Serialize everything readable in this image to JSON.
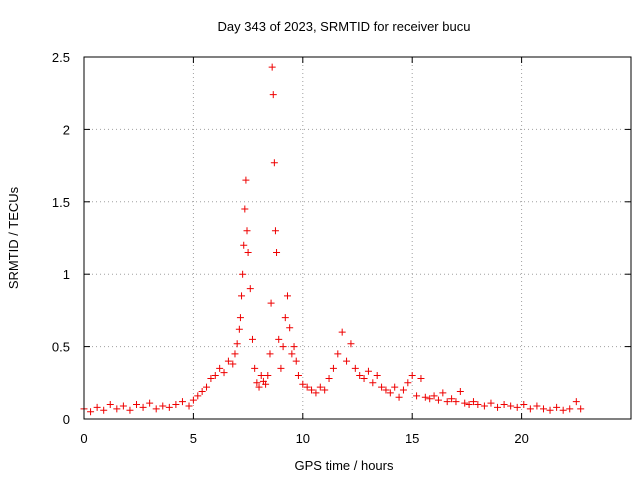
{
  "chart_data": {
    "type": "scatter",
    "title": "Day 343 of 2023, SRMTID for receiver bucu",
    "xlabel": "GPS time / hours",
    "ylabel": "SRMTID / TECUs",
    "xlim": [
      0,
      25
    ],
    "ylim": [
      0,
      2.5
    ],
    "xticks": [
      0,
      5,
      10,
      15,
      20
    ],
    "xtick_labels": [
      "0",
      "5",
      "10",
      "15",
      "20"
    ],
    "yticks": [
      0,
      0.5,
      1,
      1.5,
      2,
      2.5
    ],
    "ytick_labels": [
      "0",
      "0.5",
      "1",
      "1.5",
      "2",
      "2.5"
    ],
    "grid": true,
    "marker": "+",
    "color": "#ee0000",
    "series": [
      {
        "name": "bucu",
        "x": [
          0.0,
          0.3,
          0.6,
          0.9,
          1.2,
          1.5,
          1.8,
          2.1,
          2.4,
          2.7,
          3.0,
          3.3,
          3.6,
          3.9,
          4.2,
          4.5,
          4.8,
          5.0,
          5.2,
          5.4,
          5.6,
          5.8,
          6.0,
          6.2,
          6.4,
          6.6,
          6.8,
          6.9,
          7.0,
          7.1,
          7.15,
          7.2,
          7.25,
          7.3,
          7.35,
          7.4,
          7.45,
          7.5,
          7.6,
          7.7,
          7.8,
          7.9,
          8.0,
          8.1,
          8.2,
          8.3,
          8.4,
          8.5,
          8.55,
          8.6,
          8.65,
          8.7,
          8.75,
          8.8,
          8.9,
          9.0,
          9.1,
          9.2,
          9.3,
          9.4,
          9.5,
          9.6,
          9.7,
          9.8,
          10.0,
          10.2,
          10.4,
          10.6,
          10.8,
          11.0,
          11.2,
          11.4,
          11.6,
          11.8,
          12.0,
          12.2,
          12.4,
          12.6,
          12.8,
          13.0,
          13.2,
          13.4,
          13.6,
          13.8,
          14.0,
          14.2,
          14.4,
          14.6,
          14.8,
          15.0,
          15.2,
          15.4,
          15.6,
          15.8,
          16.0,
          16.2,
          16.4,
          16.6,
          16.8,
          17.0,
          17.2,
          17.4,
          17.6,
          17.8,
          18.0,
          18.3,
          18.6,
          18.9,
          19.2,
          19.5,
          19.8,
          20.1,
          20.4,
          20.7,
          21.0,
          21.3,
          21.6,
          21.9,
          22.2,
          22.5,
          22.7
        ],
        "y": [
          0.07,
          0.05,
          0.08,
          0.06,
          0.1,
          0.07,
          0.09,
          0.06,
          0.1,
          0.08,
          0.11,
          0.07,
          0.09,
          0.08,
          0.1,
          0.12,
          0.09,
          0.13,
          0.16,
          0.19,
          0.22,
          0.28,
          0.3,
          0.35,
          0.32,
          0.4,
          0.38,
          0.45,
          0.52,
          0.62,
          0.7,
          0.85,
          1.0,
          1.2,
          1.45,
          1.65,
          1.3,
          1.15,
          0.9,
          0.55,
          0.35,
          0.25,
          0.22,
          0.3,
          0.26,
          0.24,
          0.3,
          0.45,
          0.8,
          2.43,
          2.24,
          1.77,
          1.3,
          1.15,
          0.55,
          0.35,
          0.5,
          0.7,
          0.85,
          0.63,
          0.45,
          0.5,
          0.4,
          0.3,
          0.24,
          0.22,
          0.2,
          0.18,
          0.22,
          0.2,
          0.28,
          0.35,
          0.45,
          0.6,
          0.4,
          0.52,
          0.35,
          0.3,
          0.28,
          0.33,
          0.25,
          0.3,
          0.22,
          0.2,
          0.18,
          0.22,
          0.15,
          0.2,
          0.25,
          0.3,
          0.16,
          0.28,
          0.15,
          0.14,
          0.16,
          0.13,
          0.18,
          0.12,
          0.14,
          0.12,
          0.19,
          0.11,
          0.1,
          0.12,
          0.1,
          0.09,
          0.11,
          0.08,
          0.1,
          0.09,
          0.08,
          0.1,
          0.07,
          0.09,
          0.07,
          0.06,
          0.08,
          0.06,
          0.07,
          0.12,
          0.07
        ]
      }
    ]
  }
}
